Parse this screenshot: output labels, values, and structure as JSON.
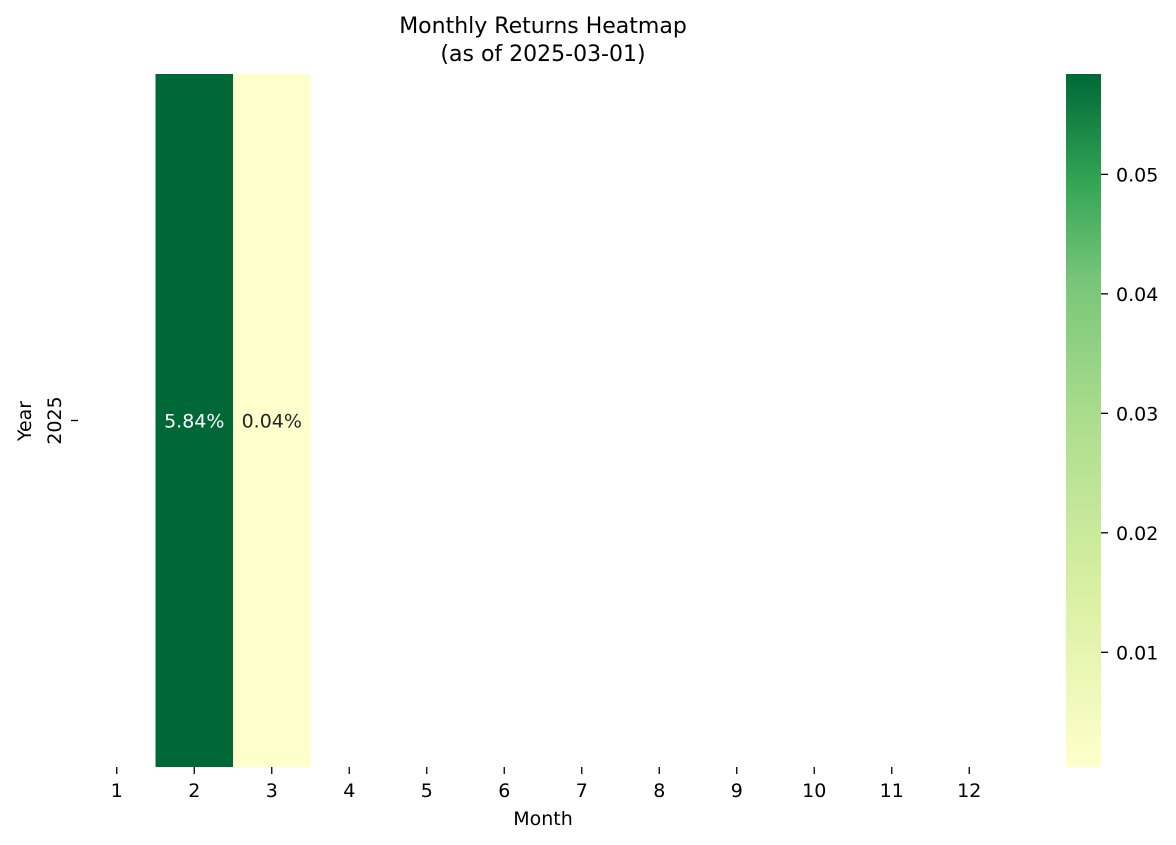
{
  "chart_data": {
    "type": "heatmap",
    "title": "Monthly Returns Heatmap",
    "subtitle": "(as of 2025-03-01)",
    "xlabel": "Month",
    "ylabel": "Year",
    "x_categories": [
      "1",
      "2",
      "3",
      "4",
      "5",
      "6",
      "7",
      "8",
      "9",
      "10",
      "11",
      "12"
    ],
    "y_categories": [
      "2025"
    ],
    "cells": [
      {
        "year": "2025",
        "month": "2",
        "value": 0.0584,
        "label": "5.84%"
      },
      {
        "year": "2025",
        "month": "3",
        "value": 0.0004,
        "label": "0.04%"
      }
    ],
    "colorbar": {
      "colormap": "YlGn",
      "min": 0.0004,
      "max": 0.0584,
      "ticks": [
        {
          "value": 0.01,
          "label": "0.01"
        },
        {
          "value": 0.02,
          "label": "0.02"
        },
        {
          "value": 0.03,
          "label": "0.03"
        },
        {
          "value": 0.04,
          "label": "0.04"
        },
        {
          "value": 0.05,
          "label": "0.05"
        }
      ]
    }
  }
}
